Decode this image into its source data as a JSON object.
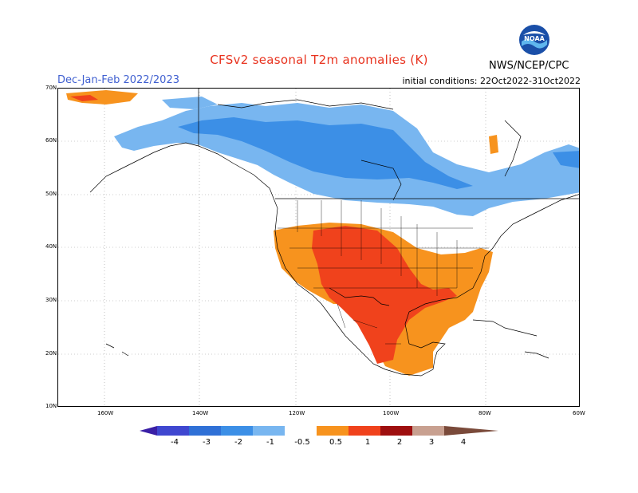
{
  "title": "CFSv2 seasonal T2m anomalies (K)",
  "period": "Dec-Jan-Feb 2022/2023",
  "initial_conditions": "initial conditions: 22Oct2022-31Oct2022",
  "agency": "NWS/NCEP/CPC",
  "logo_text": "NOAA",
  "latitude_labels": [
    "70N",
    "60N",
    "50N",
    "40N",
    "30N",
    "20N",
    "10N"
  ],
  "longitude_labels": [
    "160W",
    "140W",
    "120W",
    "100W",
    "80W",
    "60W"
  ],
  "colorbar": {
    "labels": [
      "-4",
      "-3",
      "-2",
      "-1",
      "-0.5",
      "0.5",
      "1",
      "2",
      "3",
      "4"
    ],
    "colors": [
      "#3a1fa6",
      "#3f47d0",
      "#2f70d6",
      "#3c8fe6",
      "#78b6f0",
      "#ffffff",
      "#f7931e",
      "#f0421c",
      "#9e0f0f",
      "#c8a090",
      "#7a4a3a"
    ]
  }
}
